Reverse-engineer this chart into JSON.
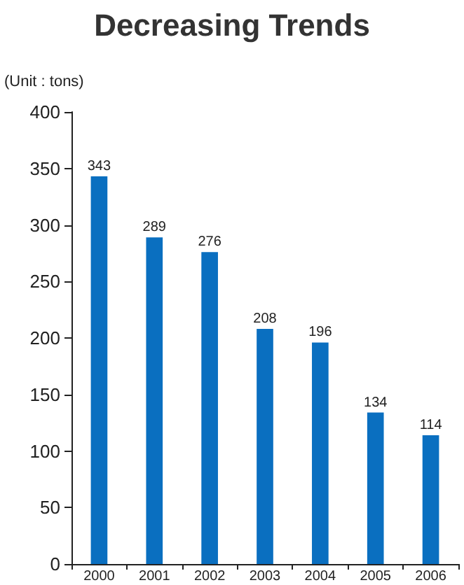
{
  "chart_data": {
    "type": "bar",
    "title": "Decreasing Trends",
    "ylabel": "(Unit : tons)",
    "categories": [
      "2000",
      "2001",
      "2002",
      "2003",
      "2004",
      "2005",
      "2006"
    ],
    "values": [
      343,
      289,
      276,
      208,
      196,
      134,
      114
    ],
    "color": "#0a6fc0",
    "ylim": [
      0,
      400
    ],
    "yticks": [
      0,
      50,
      100,
      150,
      200,
      250,
      300,
      350,
      400
    ],
    "grid": false,
    "data_labels": true
  }
}
